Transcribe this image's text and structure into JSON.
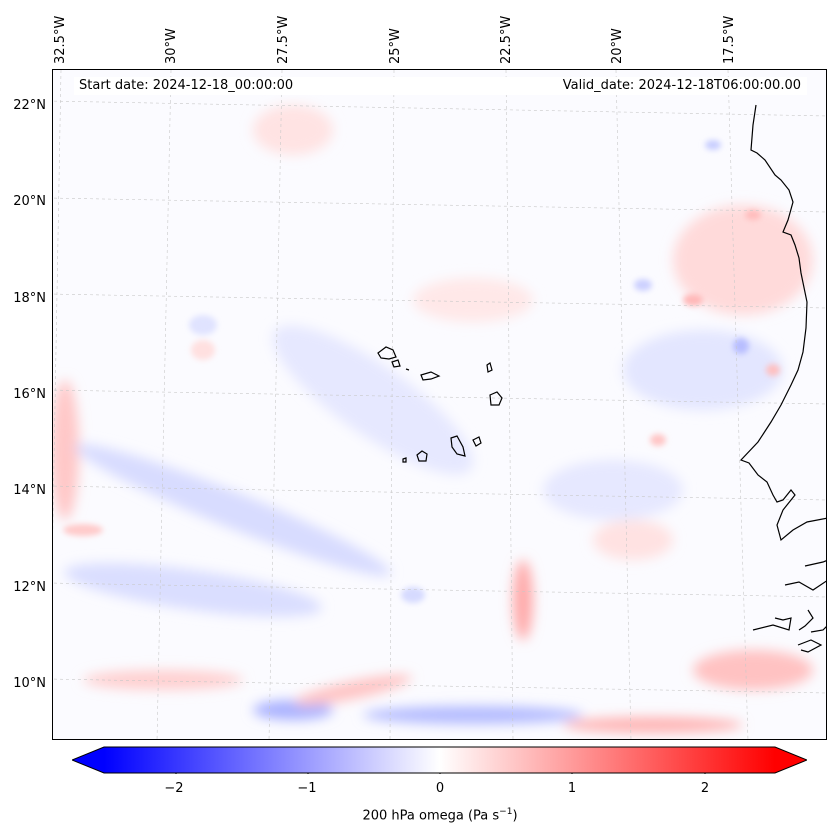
{
  "map": {
    "start_date": "Start date: 2024-12-18_00:00:00",
    "valid_date": "Valid_date: 2024-12-18T06:00:00.00",
    "lon_labels": [
      "32.5°W",
      "30°W",
      "27.5°W",
      "25°W",
      "22.5°W",
      "20°W",
      "17.5°W"
    ],
    "lat_labels": [
      "22°N",
      "20°N",
      "18°N",
      "16°N",
      "14°N",
      "12°N",
      "10°N"
    ],
    "features": [
      "Cape Verde Islands",
      "West African coastline"
    ]
  },
  "colorbar": {
    "ticks": [
      "−2",
      "−1",
      "0",
      "1",
      "2"
    ],
    "title": "200 hPa omega (Pa s",
    "title_sup": "−1",
    "title_close": ")",
    "min": -2.6,
    "max": 2.6,
    "colors": {
      "low": "#0000ff",
      "mid": "#ffffff",
      "high": "#ff0000"
    }
  }
}
